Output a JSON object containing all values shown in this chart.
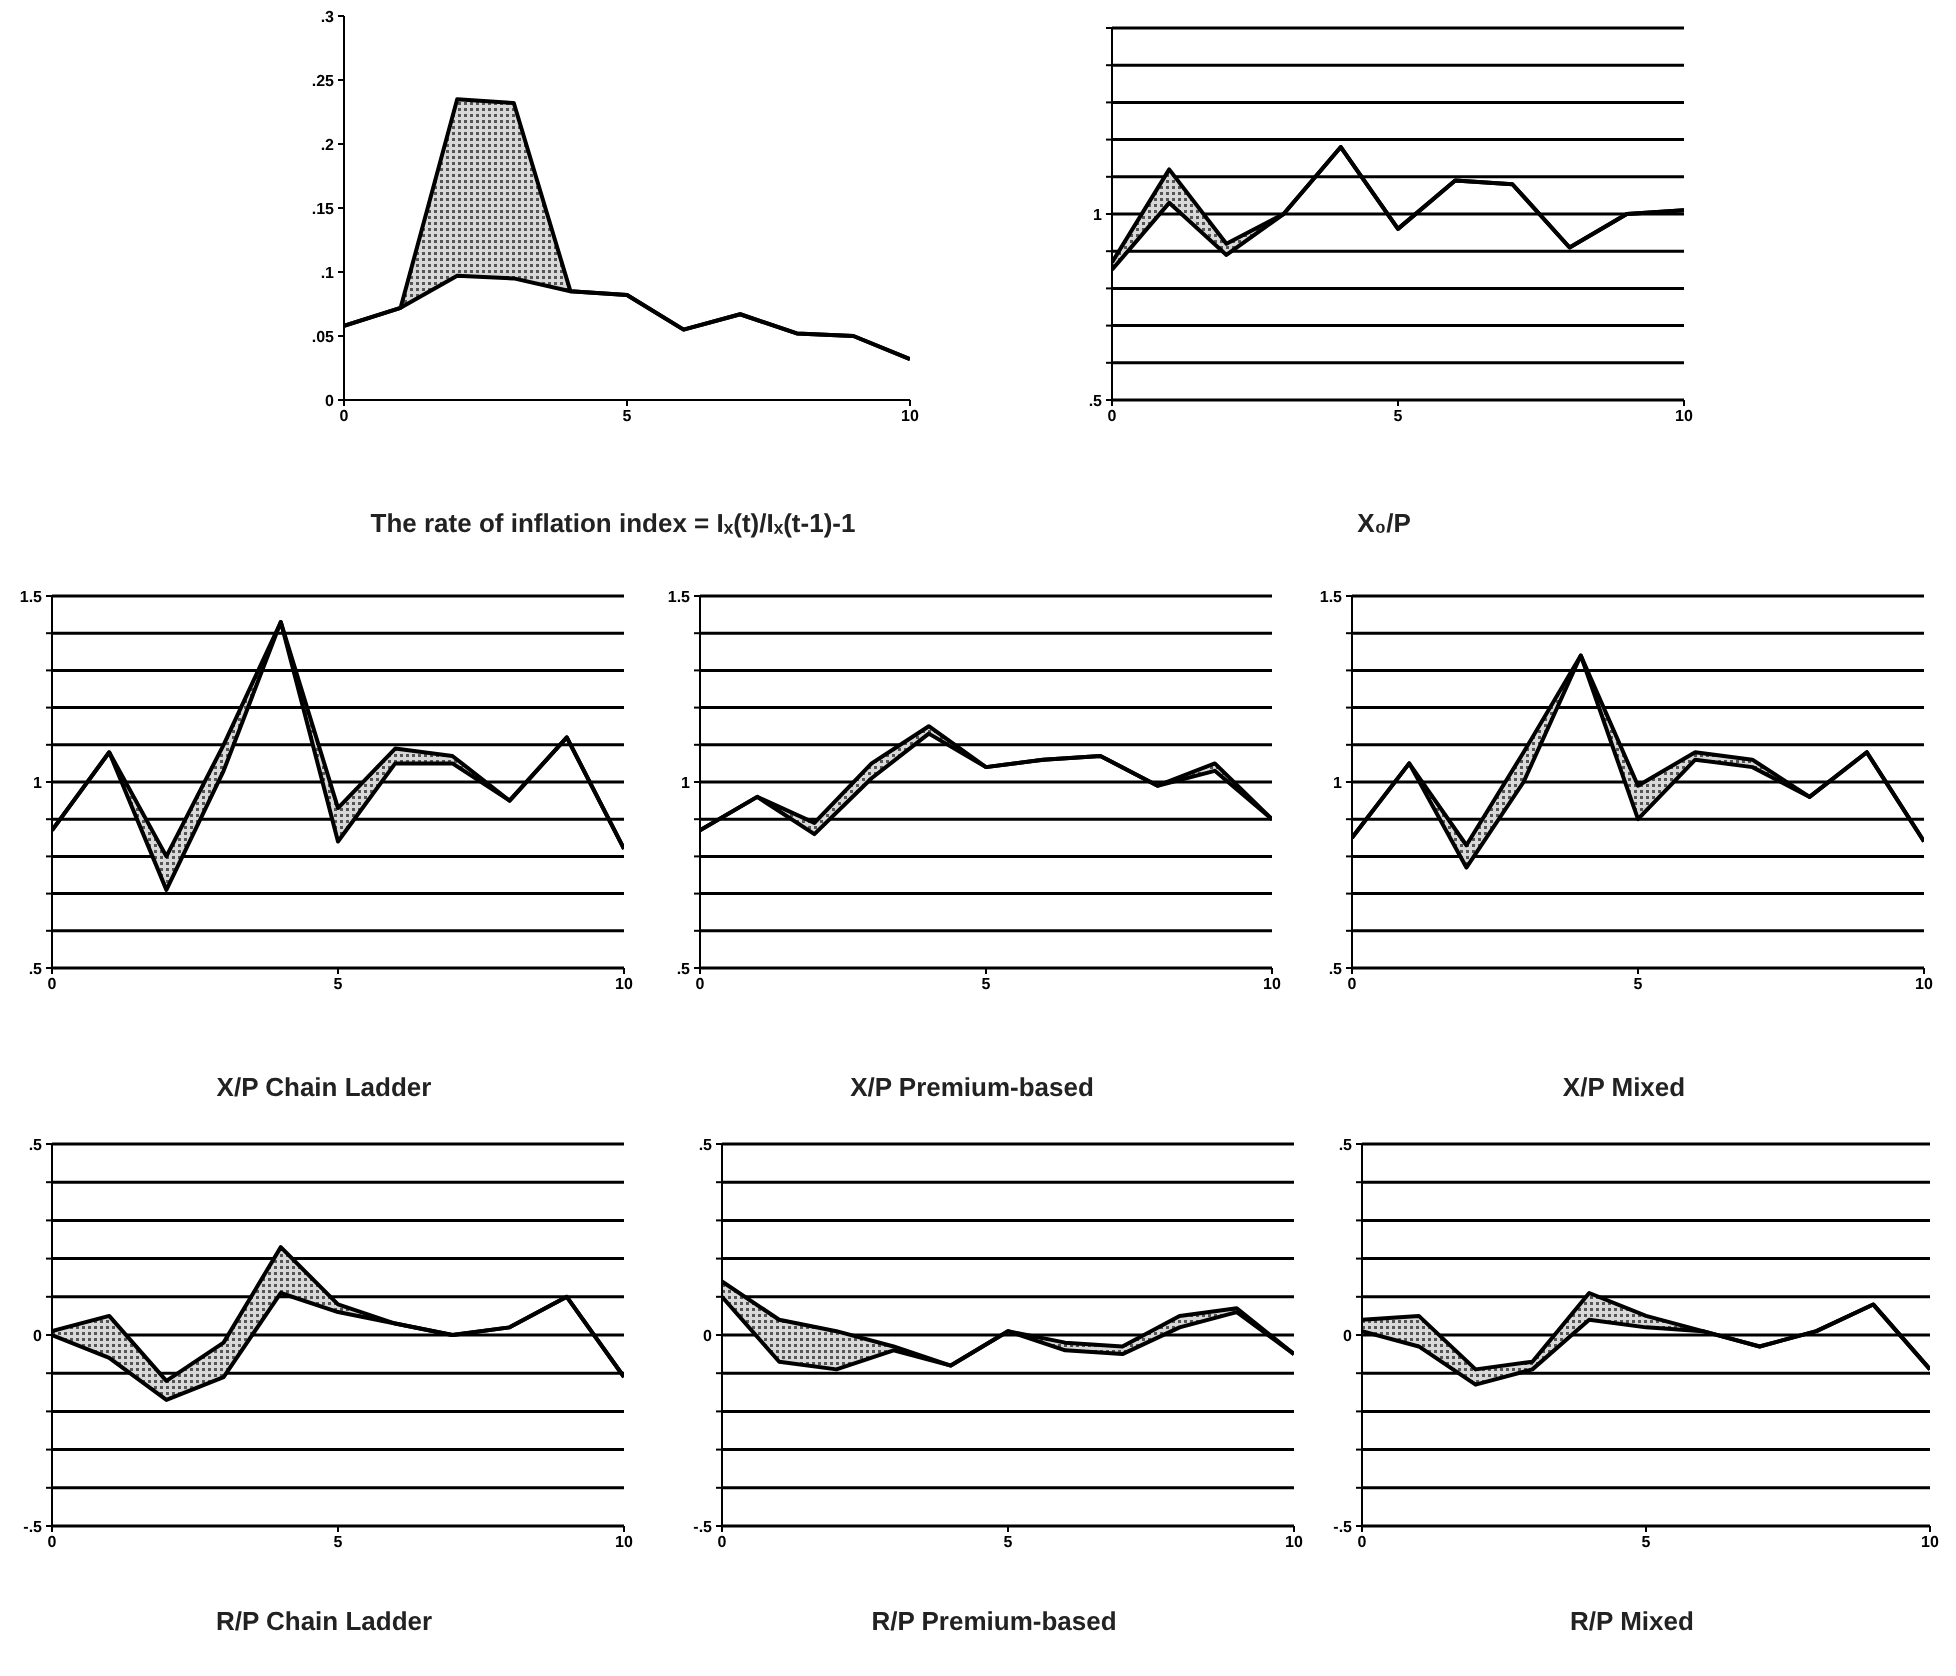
{
  "chart_data": [
    {
      "type": "line",
      "title": "The rate of inflation index = Iₓ(t)/Iₓ(t-1)-1",
      "x": [
        0,
        1,
        2,
        3,
        4,
        5,
        6,
        7,
        8,
        9,
        10
      ],
      "xlim": [
        0,
        10
      ],
      "xticks": [
        0,
        5,
        10
      ],
      "ylim": [
        0,
        0.3
      ],
      "yticks": [
        {
          "value": 0,
          "label": "0"
        },
        {
          "value": 0.05,
          "label": ".05"
        },
        {
          "value": 0.1,
          "label": ".1"
        },
        {
          "value": 0.15,
          "label": ".15"
        },
        {
          "value": 0.2,
          "label": ".2"
        },
        {
          "value": 0.25,
          "label": ".25"
        },
        {
          "value": 0.3,
          "label": ".3"
        }
      ],
      "grid": false,
      "series": [
        {
          "color": "#000000",
          "values": [
            0.058,
            0.072,
            0.235,
            0.232,
            0.085,
            0.082,
            0.055,
            0.067,
            0.052,
            0.05,
            0.032
          ],
          "lower": [
            0.058,
            0.072,
            0.097,
            0.095,
            0.085,
            0.082,
            0.055,
            0.067,
            0.052,
            0.05,
            0.032
          ],
          "upper": [
            0.058,
            0.072,
            0.235,
            0.232,
            0.085,
            0.082,
            0.055,
            0.067,
            0.052,
            0.05,
            0.032
          ]
        },
        {
          "color": "#000000",
          "values": [
            0.058,
            0.072,
            0.097,
            0.095,
            0.085,
            0.082,
            0.055,
            0.067,
            0.052,
            0.05,
            0.032
          ]
        }
      ]
    },
    {
      "type": "line",
      "title": "X₀/P",
      "x": [
        0,
        1,
        2,
        3,
        4,
        5,
        6,
        7,
        8,
        9,
        10
      ],
      "xlim": [
        0,
        10
      ],
      "xticks": [
        0,
        5,
        10
      ],
      "ylim": [
        0.5,
        1.5
      ],
      "yticks": [
        {
          "value": 0.5,
          "label": ".5"
        },
        {
          "value": 0.6,
          "label": null
        },
        {
          "value": 0.7,
          "label": null
        },
        {
          "value": 0.8,
          "label": null
        },
        {
          "value": 0.9,
          "label": null
        },
        {
          "value": 1,
          "label": "1"
        },
        {
          "value": 1.1,
          "label": null
        },
        {
          "value": 1.2,
          "label": null
        },
        {
          "value": 1.3,
          "label": null
        },
        {
          "value": 1.4,
          "label": null
        },
        {
          "value": 1.5,
          "label": null
        }
      ],
      "grid": "y",
      "series": [
        {
          "color": "#000000",
          "values": [
            0.87,
            1.12,
            0.92,
            1.0,
            1.18,
            0.96,
            1.09,
            1.08,
            0.91,
            1.0,
            1.01
          ],
          "lower": [
            0.85,
            1.03,
            0.89,
            1.0,
            1.18,
            0.96,
            1.09,
            1.08,
            0.91,
            1.0,
            1.01
          ],
          "upper": [
            0.87,
            1.12,
            0.92,
            1.0,
            1.18,
            0.96,
            1.09,
            1.08,
            0.91,
            1.0,
            1.01
          ]
        },
        {
          "color": "#000000",
          "values": [
            0.85,
            1.03,
            0.89,
            1.0,
            1.18,
            0.96,
            1.09,
            1.08,
            0.91,
            1.0,
            1.01
          ]
        }
      ]
    },
    {
      "type": "line",
      "title": "X/P Chain Ladder",
      "x": [
        0,
        1,
        2,
        3,
        4,
        5,
        6,
        7,
        8,
        9,
        10
      ],
      "xlim": [
        0,
        10
      ],
      "xticks": [
        0,
        5,
        10
      ],
      "ylim": [
        0.5,
        1.5
      ],
      "yticks": [
        {
          "value": 0.5,
          "label": ".5"
        },
        {
          "value": 0.6,
          "label": null
        },
        {
          "value": 0.7,
          "label": null
        },
        {
          "value": 0.8,
          "label": null
        },
        {
          "value": 0.9,
          "label": null
        },
        {
          "value": 1,
          "label": "1"
        },
        {
          "value": 1.1,
          "label": null
        },
        {
          "value": 1.2,
          "label": null
        },
        {
          "value": 1.3,
          "label": null
        },
        {
          "value": 1.4,
          "label": null
        },
        {
          "value": 1.5,
          "label": "1.5"
        }
      ],
      "grid": "y",
      "series": [
        {
          "color": "#000000",
          "values": [
            0.87,
            1.08,
            0.8,
            1.1,
            1.43,
            0.93,
            1.09,
            1.07,
            0.95,
            1.12,
            0.82
          ],
          "lower": [
            0.87,
            1.08,
            0.71,
            1.03,
            1.43,
            0.84,
            1.05,
            1.05,
            0.95,
            1.12,
            0.82
          ],
          "upper": [
            0.87,
            1.08,
            0.8,
            1.1,
            1.43,
            0.93,
            1.09,
            1.07,
            0.95,
            1.12,
            0.82
          ]
        },
        {
          "color": "#000000",
          "values": [
            0.87,
            1.08,
            0.71,
            1.03,
            1.43,
            0.84,
            1.05,
            1.05,
            0.95,
            1.12,
            0.82
          ]
        }
      ]
    },
    {
      "type": "line",
      "title": "X/P Premium-based",
      "x": [
        0,
        1,
        2,
        3,
        4,
        5,
        6,
        7,
        8,
        9,
        10
      ],
      "xlim": [
        0,
        10
      ],
      "xticks": [
        0,
        5,
        10
      ],
      "ylim": [
        0.5,
        1.5
      ],
      "yticks": [
        {
          "value": 0.5,
          "label": ".5"
        },
        {
          "value": 0.6,
          "label": null
        },
        {
          "value": 0.7,
          "label": null
        },
        {
          "value": 0.8,
          "label": null
        },
        {
          "value": 0.9,
          "label": null
        },
        {
          "value": 1,
          "label": "1"
        },
        {
          "value": 1.1,
          "label": null
        },
        {
          "value": 1.2,
          "label": null
        },
        {
          "value": 1.3,
          "label": null
        },
        {
          "value": 1.4,
          "label": null
        },
        {
          "value": 1.5,
          "label": "1.5"
        }
      ],
      "grid": "y",
      "series": [
        {
          "color": "#000000",
          "values": [
            0.87,
            0.96,
            0.89,
            1.05,
            1.15,
            1.04,
            1.06,
            1.07,
            0.99,
            1.05,
            0.9
          ],
          "lower": [
            0.87,
            0.96,
            0.86,
            1.01,
            1.13,
            1.04,
            1.06,
            1.07,
            0.99,
            1.03,
            0.9
          ],
          "upper": [
            0.87,
            0.96,
            0.89,
            1.05,
            1.15,
            1.04,
            1.06,
            1.07,
            0.99,
            1.05,
            0.9
          ]
        },
        {
          "color": "#000000",
          "values": [
            0.87,
            0.96,
            0.86,
            1.01,
            1.13,
            1.04,
            1.06,
            1.07,
            0.99,
            1.03,
            0.9
          ]
        }
      ]
    },
    {
      "type": "line",
      "title": "X/P Mixed",
      "x": [
        0,
        1,
        2,
        3,
        4,
        5,
        6,
        7,
        8,
        9,
        10
      ],
      "xlim": [
        0,
        10
      ],
      "xticks": [
        0,
        5,
        10
      ],
      "ylim": [
        0.5,
        1.5
      ],
      "yticks": [
        {
          "value": 0.5,
          "label": ".5"
        },
        {
          "value": 0.6,
          "label": null
        },
        {
          "value": 0.7,
          "label": null
        },
        {
          "value": 0.8,
          "label": null
        },
        {
          "value": 0.9,
          "label": null
        },
        {
          "value": 1,
          "label": "1"
        },
        {
          "value": 1.1,
          "label": null
        },
        {
          "value": 1.2,
          "label": null
        },
        {
          "value": 1.3,
          "label": null
        },
        {
          "value": 1.4,
          "label": null
        },
        {
          "value": 1.5,
          "label": "1.5"
        }
      ],
      "grid": "y",
      "series": [
        {
          "color": "#000000",
          "values": [
            0.85,
            1.05,
            0.83,
            1.08,
            1.34,
            0.99,
            1.08,
            1.06,
            0.96,
            1.08,
            0.84
          ],
          "lower": [
            0.85,
            1.05,
            0.77,
            1.0,
            1.34,
            0.9,
            1.06,
            1.04,
            0.96,
            1.08,
            0.84
          ],
          "upper": [
            0.85,
            1.05,
            0.83,
            1.08,
            1.34,
            0.99,
            1.08,
            1.06,
            0.96,
            1.08,
            0.84
          ]
        },
        {
          "color": "#000000",
          "values": [
            0.85,
            1.05,
            0.77,
            1.0,
            1.34,
            0.9,
            1.06,
            1.04,
            0.96,
            1.08,
            0.84
          ]
        }
      ]
    },
    {
      "type": "line",
      "title": "R/P Chain Ladder",
      "x": [
        0,
        1,
        2,
        3,
        4,
        5,
        6,
        7,
        8,
        9,
        10
      ],
      "xlim": [
        0,
        10
      ],
      "xticks": [
        0,
        5,
        10
      ],
      "ylim": [
        -0.5,
        0.5
      ],
      "yticks": [
        {
          "value": -0.5,
          "label": "-.5"
        },
        {
          "value": -0.4,
          "label": null
        },
        {
          "value": -0.3,
          "label": null
        },
        {
          "value": -0.2,
          "label": null
        },
        {
          "value": -0.1,
          "label": null
        },
        {
          "value": 0,
          "label": "0"
        },
        {
          "value": 0.1,
          "label": null
        },
        {
          "value": 0.2,
          "label": null
        },
        {
          "value": 0.3,
          "label": null
        },
        {
          "value": 0.4,
          "label": null
        },
        {
          "value": 0.5,
          "label": ".5"
        }
      ],
      "grid": "y",
      "series": [
        {
          "color": "#000000",
          "values": [
            0.01,
            0.05,
            -0.12,
            -0.02,
            0.23,
            0.08,
            0.03,
            0,
            0.02,
            0.1,
            -0.11
          ],
          "lower": [
            0.0,
            -0.06,
            -0.17,
            -0.11,
            0.11,
            0.06,
            0.03,
            0,
            0.02,
            0.1,
            -0.11
          ],
          "upper": [
            0.01,
            0.05,
            -0.12,
            -0.02,
            0.23,
            0.08,
            0.03,
            0,
            0.02,
            0.1,
            -0.11
          ]
        },
        {
          "color": "#000000",
          "values": [
            0.0,
            -0.06,
            -0.17,
            -0.11,
            0.11,
            0.06,
            0.03,
            0,
            0.02,
            0.1,
            -0.11
          ]
        }
      ]
    },
    {
      "type": "line",
      "title": "R/P Premium-based",
      "x": [
        0,
        1,
        2,
        3,
        4,
        5,
        6,
        7,
        8,
        9,
        10
      ],
      "xlim": [
        0,
        10
      ],
      "xticks": [
        0,
        5,
        10
      ],
      "ylim": [
        -0.5,
        0.5
      ],
      "yticks": [
        {
          "value": -0.5,
          "label": "-.5"
        },
        {
          "value": -0.4,
          "label": null
        },
        {
          "value": -0.3,
          "label": null
        },
        {
          "value": -0.2,
          "label": null
        },
        {
          "value": -0.1,
          "label": null
        },
        {
          "value": 0,
          "label": "0"
        },
        {
          "value": 0.1,
          "label": null
        },
        {
          "value": 0.2,
          "label": null
        },
        {
          "value": 0.3,
          "label": null
        },
        {
          "value": 0.4,
          "label": null
        },
        {
          "value": 0.5,
          "label": ".5"
        }
      ],
      "grid": "y",
      "series": [
        {
          "color": "#000000",
          "values": [
            0.14,
            0.04,
            0.01,
            -0.03,
            -0.08,
            0.01,
            -0.02,
            -0.03,
            0.05,
            0.07,
            -0.05
          ],
          "lower": [
            0.1,
            -0.07,
            -0.09,
            -0.04,
            -0.08,
            0.01,
            -0.04,
            -0.05,
            0.02,
            0.06,
            -0.05
          ],
          "upper": [
            0.14,
            0.04,
            0.01,
            -0.03,
            -0.08,
            0.01,
            -0.02,
            -0.03,
            0.05,
            0.07,
            -0.05
          ]
        },
        {
          "color": "#000000",
          "values": [
            0.1,
            -0.07,
            -0.09,
            -0.04,
            -0.08,
            0.01,
            -0.04,
            -0.05,
            0.02,
            0.06,
            -0.05
          ]
        }
      ]
    },
    {
      "type": "line",
      "title": "R/P Mixed",
      "x": [
        0,
        1,
        2,
        3,
        4,
        5,
        6,
        7,
        8,
        9,
        10
      ],
      "xlim": [
        0,
        10
      ],
      "xticks": [
        0,
        5,
        10
      ],
      "ylim": [
        -0.5,
        0.5
      ],
      "yticks": [
        {
          "value": -0.5,
          "label": "-.5"
        },
        {
          "value": -0.4,
          "label": null
        },
        {
          "value": -0.3,
          "label": null
        },
        {
          "value": -0.2,
          "label": null
        },
        {
          "value": -0.1,
          "label": null
        },
        {
          "value": 0,
          "label": "0"
        },
        {
          "value": 0.1,
          "label": null
        },
        {
          "value": 0.2,
          "label": null
        },
        {
          "value": 0.3,
          "label": null
        },
        {
          "value": 0.4,
          "label": null
        },
        {
          "value": 0.5,
          "label": ".5"
        }
      ],
      "grid": "y",
      "series": [
        {
          "color": "#000000",
          "values": [
            0.04,
            0.05,
            -0.09,
            -0.07,
            0.11,
            0.05,
            0.01,
            -0.03,
            0.01,
            0.08,
            -0.09
          ],
          "lower": [
            0.01,
            -0.03,
            -0.13,
            -0.09,
            0.04,
            0.02,
            0.01,
            -0.03,
            0.01,
            0.08,
            -0.09
          ],
          "upper": [
            0.04,
            0.05,
            -0.09,
            -0.07,
            0.11,
            0.05,
            0.01,
            -0.03,
            0.01,
            0.08,
            -0.09
          ]
        },
        {
          "color": "#000000",
          "values": [
            0.01,
            -0.03,
            -0.13,
            -0.09,
            0.04,
            0.02,
            0.01,
            -0.03,
            0.01,
            0.08,
            -0.09
          ]
        }
      ]
    }
  ]
}
